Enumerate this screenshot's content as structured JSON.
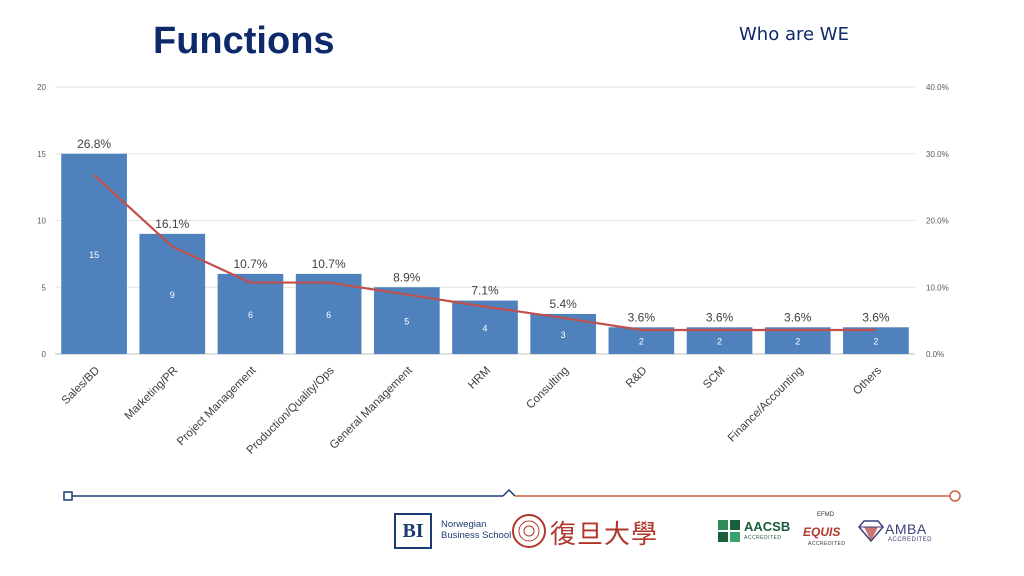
{
  "header": {
    "title": "Functions",
    "subtitle": "Who are WE"
  },
  "chart_data": {
    "type": "bar",
    "categories": [
      "Sales/BD",
      "Marketing/PR",
      "Project Management",
      "Production/Quality/Ops",
      "General Management",
      "HRM",
      "Consulting",
      "R&D",
      "SCM",
      "Finance/Accounting",
      "Others"
    ],
    "series": [
      {
        "type": "bar",
        "axis": "left",
        "values": [
          15,
          9,
          6,
          6,
          5,
          4,
          3,
          2,
          2,
          2,
          2
        ]
      },
      {
        "type": "line",
        "axis": "right",
        "values": [
          26.8,
          16.1,
          10.7,
          10.7,
          8.9,
          7.1,
          5.4,
          3.6,
          3.6,
          3.6,
          3.6
        ]
      }
    ],
    "bar_labels": [
      "15",
      "9",
      "6",
      "6",
      "5",
      "4",
      "3",
      "2",
      "2",
      "2",
      "2"
    ],
    "percent_labels": [
      "26.8%",
      "16.1%",
      "10.7%",
      "10.7%",
      "8.9%",
      "7.1%",
      "5.4%",
      "3.6%",
      "3.6%",
      "3.6%",
      "3.6%"
    ],
    "y_left": {
      "ylim": [
        0,
        20
      ],
      "ticks": [
        "0",
        "5",
        "10",
        "15",
        "20"
      ]
    },
    "y_right": {
      "ylim": [
        0,
        40
      ],
      "ticks": [
        "0.0%",
        "10.0%",
        "20.0%",
        "30.0%",
        "40.0%"
      ]
    },
    "grid": true,
    "colors": {
      "bar": "#4f81bd",
      "line": "#c0504d",
      "bar_label": "#ffffff",
      "text": "#404040"
    }
  },
  "footer": {
    "timeline_colors": {
      "left": "#1f3b73",
      "right": "#c8643b"
    },
    "logos": {
      "bi_mark": "BI",
      "bi_name": [
        "Norwegian",
        "Business School"
      ],
      "fudan": "復旦大學",
      "aacsb": "AACSB",
      "aacsb_sub": "ACCREDITED",
      "efmd": "EFMD",
      "equis": "EQUIS",
      "equis_sub": "ACCREDITED",
      "amba": "AMBA",
      "amba_sub": "ACCREDITED"
    }
  }
}
